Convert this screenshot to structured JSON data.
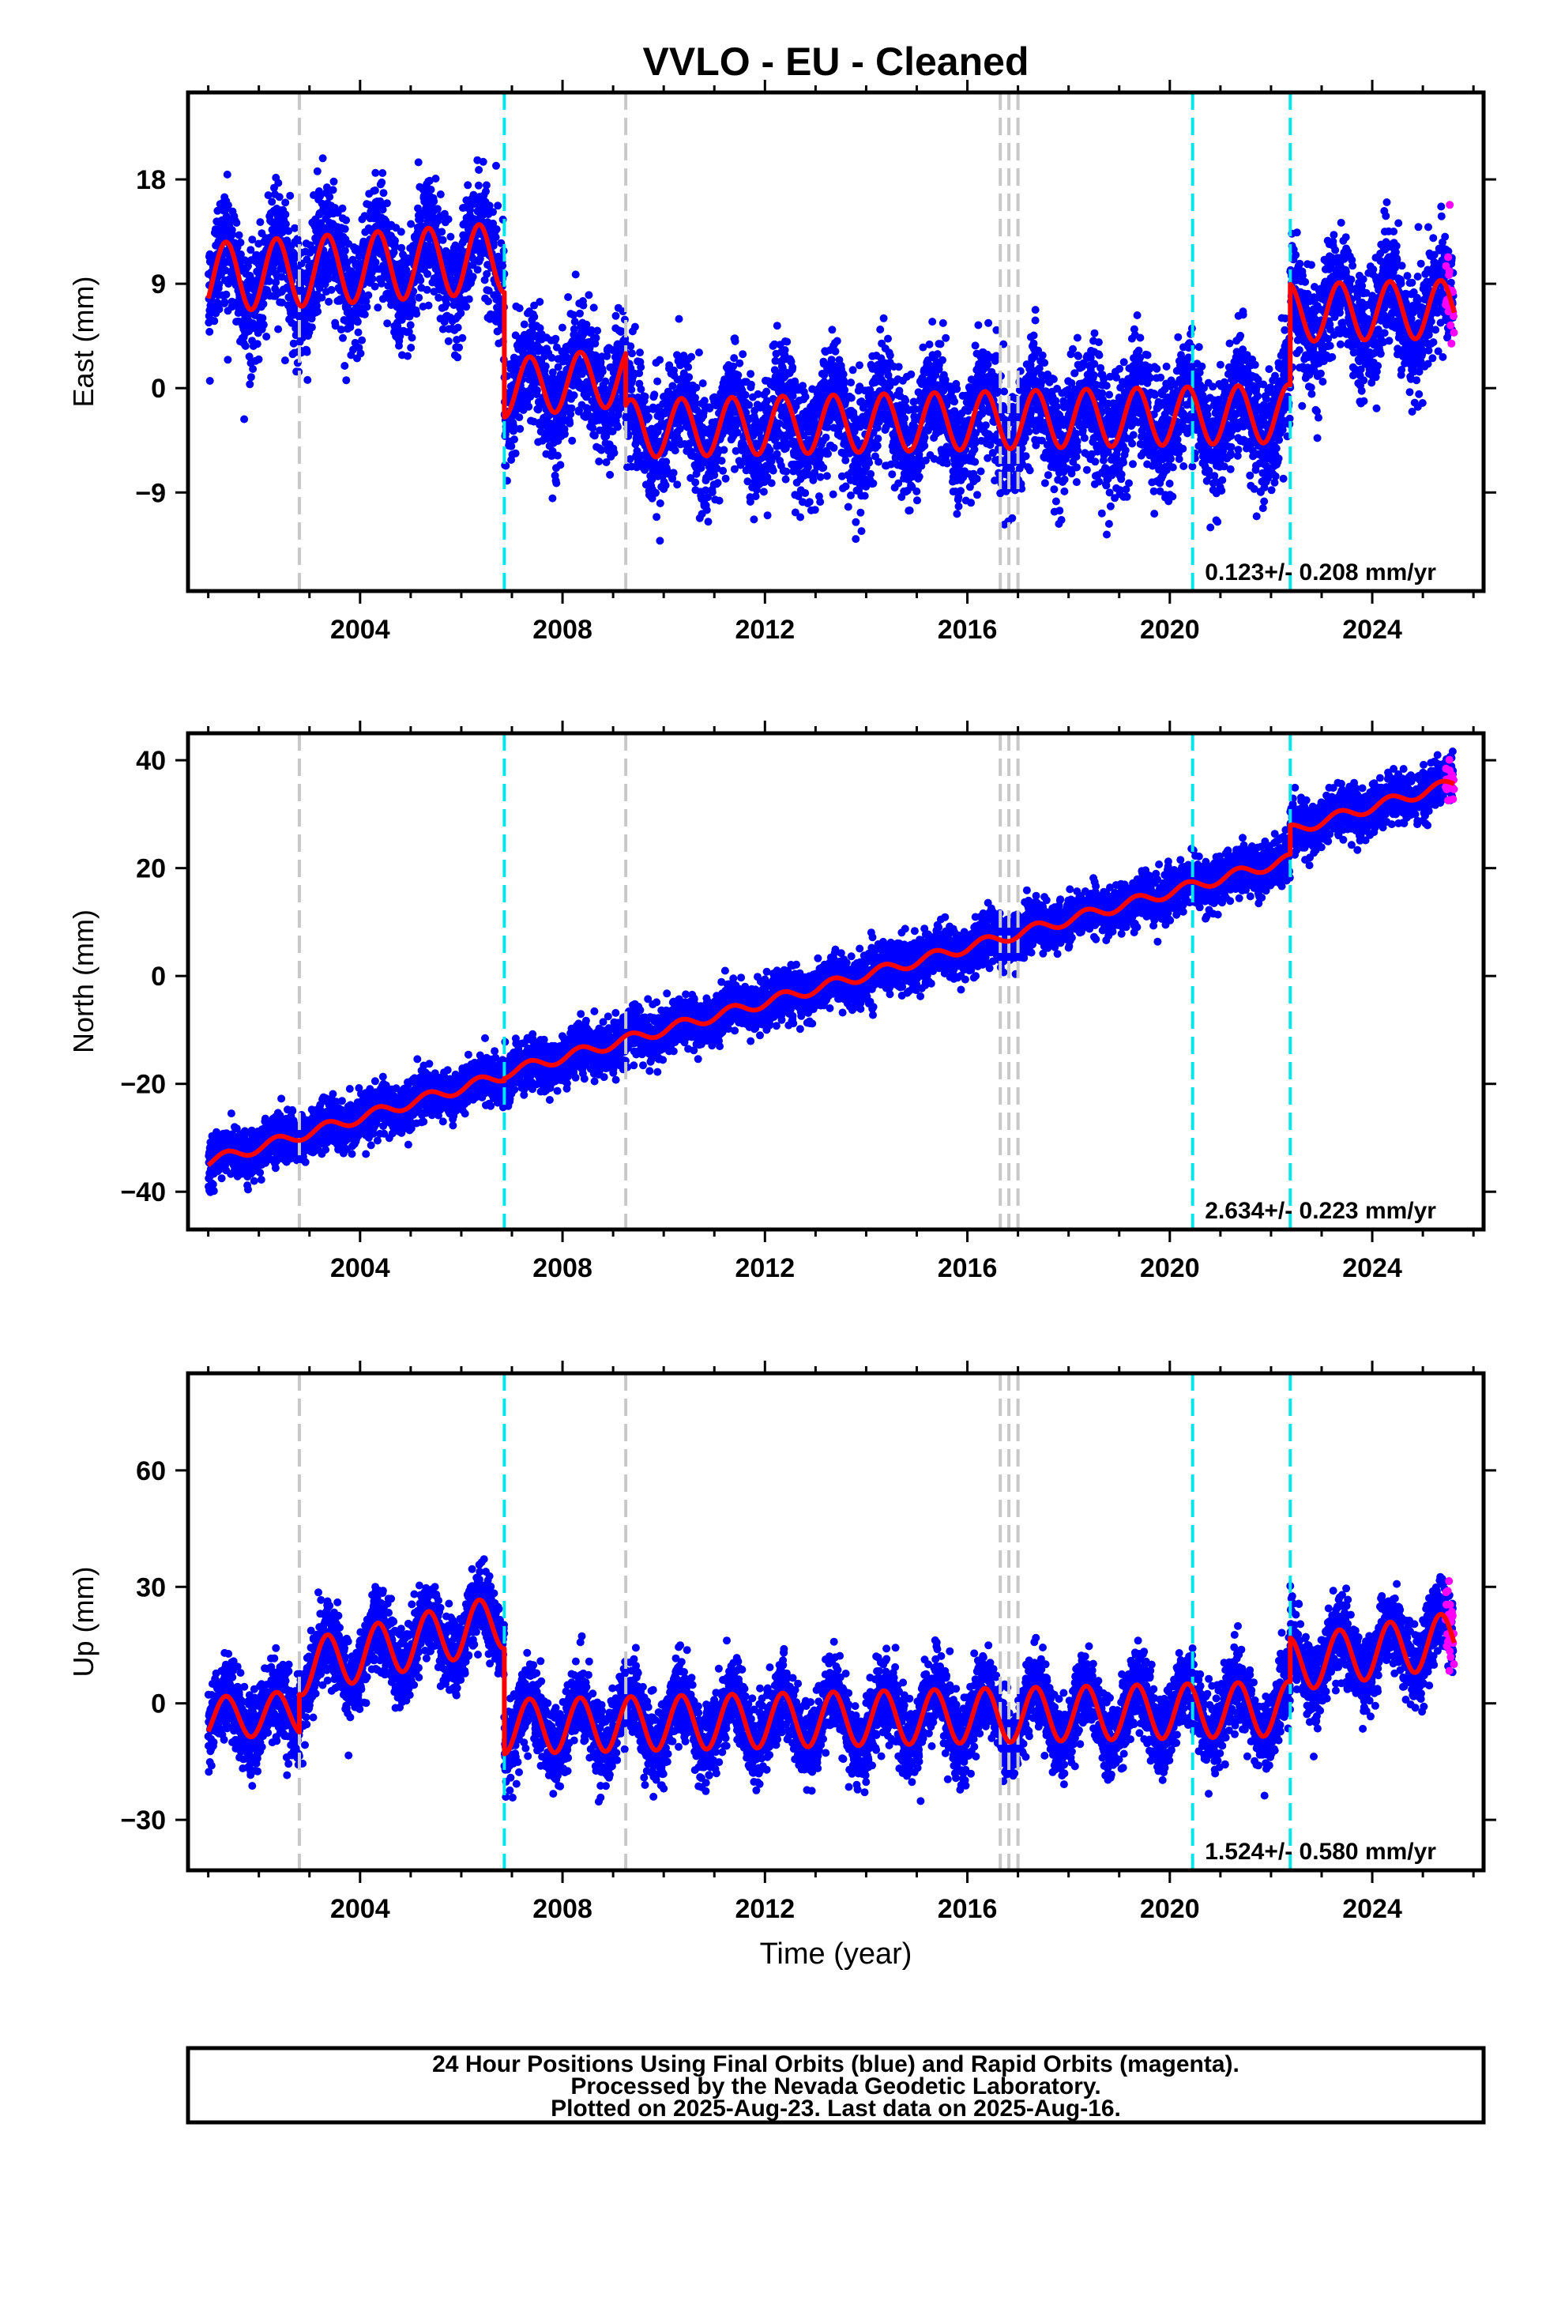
{
  "chart_data": {
    "type": "scatter",
    "title": "VVLO  - EU - Cleaned",
    "xlabel": "Time (year)",
    "xlim": [
      2000.6,
      2026.2
    ],
    "x_ticks": [
      2004,
      2008,
      2012,
      2016,
      2020,
      2024
    ],
    "vertical_lines": {
      "gray": [
        2002.8,
        2009.25,
        2016.65,
        2016.82,
        2017.0
      ],
      "cyan": [
        2006.85,
        2020.45,
        2022.38
      ]
    },
    "colors": {
      "final_orbits": "#0000ff",
      "rapid_orbits": "#ff00ff",
      "model": "#ff0000",
      "gray_line": "#c8c8c8",
      "cyan_line": "#00e5ee"
    },
    "data_span": [
      2001.0,
      2025.6
    ],
    "rapid_span": [
      2025.45,
      2025.62
    ],
    "panels": [
      {
        "ylabel": "East (mm)",
        "ylim": [
          -17.5,
          25.5
        ],
        "y_ticks": [
          -9,
          0,
          9,
          18
        ],
        "rate_label": "0.123+/- 0.208 mm/yr",
        "noise_sd": 2.5,
        "segments": [
          {
            "x0": 2001.0,
            "x1": 2006.85,
            "y0": 9.5,
            "slope": 0.3,
            "amp": 3.0
          },
          {
            "x0": 2006.85,
            "x1": 2009.25,
            "y0": 0.0,
            "slope": 0.4,
            "amp": 2.5
          },
          {
            "x0": 2009.25,
            "x1": 2022.38,
            "y0": -3.5,
            "slope": 0.1,
            "amp": 2.5
          },
          {
            "x0": 2022.38,
            "x1": 2025.62,
            "y0": 6.5,
            "slope": 0.1,
            "amp": 2.5
          }
        ]
      },
      {
        "ylabel": "North (mm)",
        "ylim": [
          -47,
          45
        ],
        "y_ticks": [
          -40,
          -20,
          0,
          20,
          40
        ],
        "rate_label": "2.634+/- 0.223 mm/yr",
        "noise_sd": 2.2,
        "segments": [
          {
            "x0": 2001.0,
            "x1": 2006.85,
            "y0": -34.5,
            "slope": 2.75,
            "amp": 1.0
          },
          {
            "x0": 2006.85,
            "x1": 2022.38,
            "y0": -18.0,
            "slope": 2.55,
            "amp": 1.0
          },
          {
            "x0": 2022.38,
            "x1": 2025.62,
            "y0": 27.0,
            "slope": 2.7,
            "amp": 1.0
          }
        ]
      },
      {
        "ylabel": "Up (mm)",
        "ylim": [
          -43,
          85
        ],
        "y_ticks": [
          -30,
          0,
          30,
          60
        ],
        "rate_label": "1.524+/- 0.580 mm/yr",
        "noise_sd": 5.0,
        "segments": [
          {
            "x0": 2001.0,
            "x1": 2002.8,
            "y0": -4.0,
            "slope": 1.0,
            "amp": 5.5
          },
          {
            "x0": 2002.8,
            "x1": 2006.85,
            "y0": 9.0,
            "slope": 3.0,
            "amp": 7.0
          },
          {
            "x0": 2006.85,
            "x1": 2022.38,
            "y0": -6.0,
            "slope": 0.3,
            "amp": 7.0
          },
          {
            "x0": 2022.38,
            "x1": 2025.62,
            "y0": 10.0,
            "slope": 2.0,
            "amp": 7.0
          }
        ]
      }
    ]
  },
  "footer": {
    "line1": "24 Hour Positions Using Final Orbits (blue) and Rapid Orbits (magenta).",
    "line2": "Processed by the Nevada Geodetic Laboratory.",
    "line3": "Plotted on 2025-Aug-23. Last data on 2025-Aug-16."
  }
}
